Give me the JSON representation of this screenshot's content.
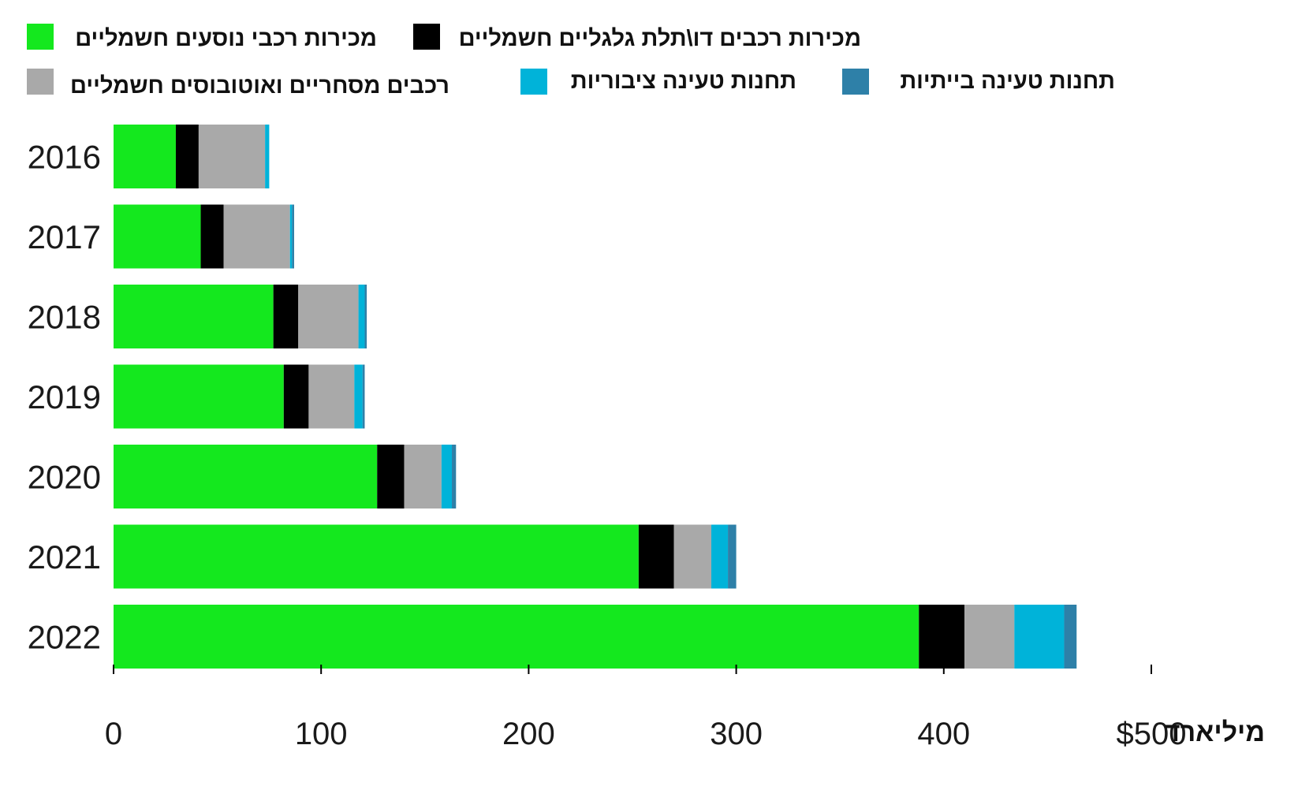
{
  "chart_data": {
    "type": "bar",
    "orientation": "horizontal",
    "stacked": true,
    "categories": [
      "2016",
      "2017",
      "2018",
      "2019",
      "2020",
      "2021",
      "2022"
    ],
    "series": [
      {
        "name": "מכירות רכבי נוסעים חשמליים",
        "color": "#14e81e",
        "values": [
          30,
          42,
          77,
          82,
          127,
          253,
          388
        ]
      },
      {
        "name": "מכירות רכבים דו\\תלת גלגליים חשמליים",
        "color": "#000000",
        "values": [
          11,
          11,
          12,
          12,
          13,
          17,
          22
        ]
      },
      {
        "name": "רכבים מסחריים ואוטובוסים חשמליים",
        "color": "#a9a9a9",
        "values": [
          32,
          32,
          29,
          22,
          18,
          18,
          24
        ]
      },
      {
        "name": "תחנות טעינה ציבוריות",
        "color": "#00b3d9",
        "values": [
          2,
          1,
          3,
          4,
          5,
          8,
          24
        ]
      },
      {
        "name": "תחנות טעינה בייתיות",
        "color": "#2e80a8",
        "values": [
          0,
          1,
          1,
          1,
          2,
          4,
          6
        ]
      }
    ],
    "x_ticks": [
      {
        "value": 0,
        "label": "0"
      },
      {
        "value": 100,
        "label": "100"
      },
      {
        "value": 200,
        "label": "200"
      },
      {
        "value": 300,
        "label": "300"
      },
      {
        "value": 400,
        "label": "400"
      },
      {
        "value": 500,
        "label": "$500"
      }
    ],
    "xlim": [
      0,
      500
    ],
    "x_unit_label": "מיליארד",
    "legend_position": "top",
    "grid": false
  }
}
